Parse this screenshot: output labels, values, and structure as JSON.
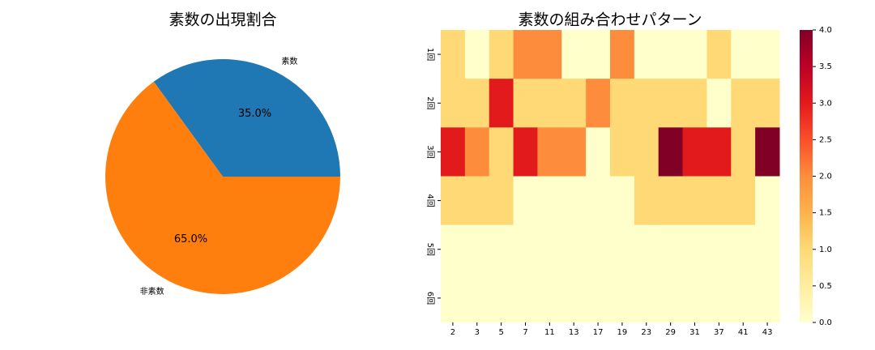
{
  "chart_data": [
    {
      "type": "pie",
      "title": "素数の出現割合",
      "categories": [
        "素数",
        "非素数"
      ],
      "values": [
        35,
        65
      ],
      "value_labels": [
        "35.0%",
        "65.0%"
      ],
      "colors": [
        "#1f77b4",
        "#ff7f0e"
      ]
    },
    {
      "type": "heatmap",
      "title": "素数の組み合わせパターン",
      "x_categories": [
        "2",
        "3",
        "5",
        "7",
        "11",
        "13",
        "17",
        "19",
        "23",
        "29",
        "31",
        "37",
        "41",
        "43"
      ],
      "y_categories": [
        "1回",
        "2回",
        "3回",
        "4回",
        "5回",
        "6回"
      ],
      "values": [
        [
          1,
          0,
          1,
          2,
          2,
          0,
          0,
          2,
          0,
          0,
          0,
          1,
          0,
          0
        ],
        [
          1,
          1,
          3,
          1,
          1,
          1,
          2,
          1,
          1,
          1,
          1,
          0,
          1,
          1
        ],
        [
          3,
          2,
          1,
          3,
          2,
          2,
          0,
          1,
          1,
          4,
          3,
          3,
          1,
          4
        ],
        [
          1,
          1,
          1,
          0,
          0,
          0,
          0,
          0,
          1,
          1,
          1,
          1,
          1,
          0
        ],
        [
          0,
          0,
          0,
          0,
          0,
          0,
          0,
          0,
          0,
          0,
          0,
          0,
          0,
          0
        ],
        [
          0,
          0,
          0,
          0,
          0,
          0,
          0,
          0,
          0,
          0,
          0,
          0,
          0,
          0
        ]
      ],
      "colormap": [
        "#ffffcc",
        "#ffeda0",
        "#fed976",
        "#feb24c",
        "#fd8d3c",
        "#fc4e2a",
        "#e31a1c",
        "#bd0026",
        "#800026"
      ],
      "zlim": [
        0,
        4
      ],
      "zticks": [
        {
          "value": 0,
          "label": "0.0"
        },
        {
          "value": 0.5,
          "label": "0.5"
        },
        {
          "value": 1,
          "label": "1.0"
        },
        {
          "value": 1.5,
          "label": "1.5"
        },
        {
          "value": 2,
          "label": "2.0"
        },
        {
          "value": 2.5,
          "label": "2.5"
        },
        {
          "value": 3,
          "label": "3.0"
        },
        {
          "value": 3.5,
          "label": "3.5"
        },
        {
          "value": 4,
          "label": "4.0"
        }
      ]
    }
  ]
}
